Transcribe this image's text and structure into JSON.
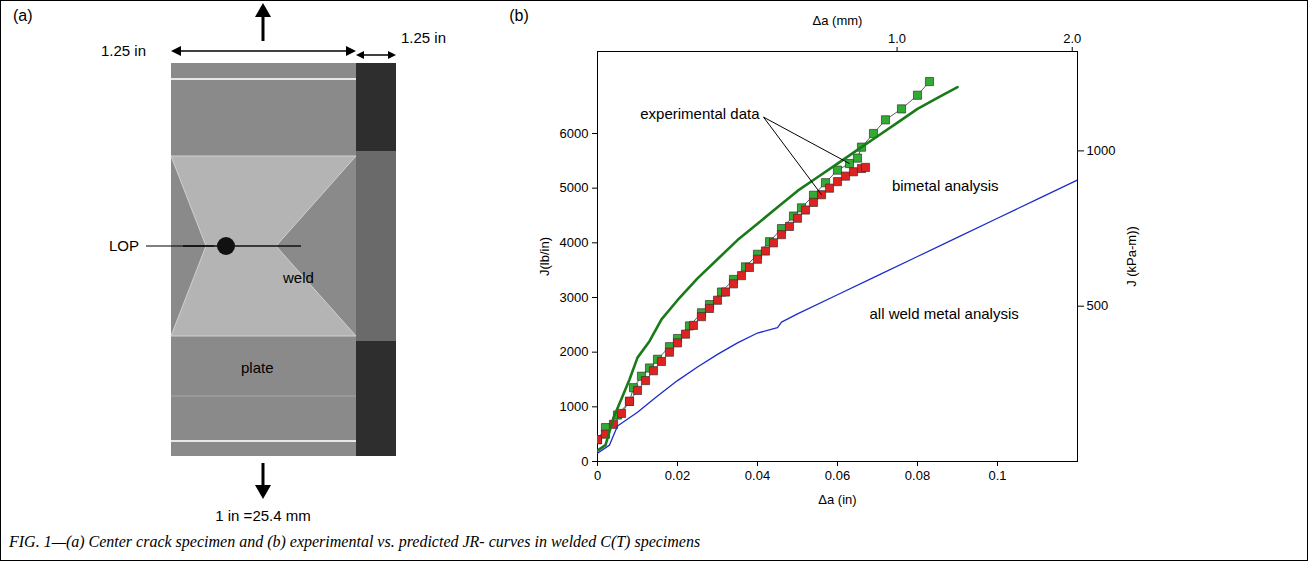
{
  "caption": "FIG. 1—(a) Center crack specimen and (b) experimental vs. predicted JR- curves in welded C(T) specimens",
  "panel_a": {
    "panel_label": "(a)",
    "width_label": "1.25 in",
    "thickness_label": "1.25 in",
    "labels": {
      "lop": "LOP",
      "weld": "weld",
      "plate": "plate"
    },
    "scale_note": "1 in =25.4 mm"
  },
  "chart_data": {
    "type": "line",
    "panel_label": "(b)",
    "xlabel": "Δa (in)",
    "ylabel": "J(lb/in)",
    "x2label": "Δa (mm)",
    "y2label": "J (kPa-m))",
    "xlim": [
      0,
      0.12
    ],
    "xticks": [
      0,
      0.02,
      0.04,
      0.06,
      0.08,
      0.1
    ],
    "ylim": [
      0,
      7500
    ],
    "yticks": [
      0,
      1000,
      2000,
      3000,
      4000,
      5000,
      6000
    ],
    "x2lim": [
      -0.71,
      2.03
    ],
    "x2ticks": [
      {
        "value": 1,
        "label": "1.0"
      },
      {
        "value": 2,
        "label": "2.0"
      }
    ],
    "y2lim": [
      0,
      1320
    ],
    "y2ticks": [
      500,
      1000
    ],
    "grid": false,
    "series": [
      {
        "color": "#33aa33",
        "marker": "square",
        "line_style": "solid",
        "x": [
          0,
          0.002,
          0.005,
          0.008,
          0.009,
          0.011,
          0.013,
          0.015,
          0.018,
          0.02,
          0.023,
          0.026,
          0.028,
          0.031,
          0.034,
          0.037,
          0.04,
          0.043,
          0.046,
          0.049,
          0.051,
          0.054,
          0.057,
          0.06,
          0.063,
          0.065,
          0.066,
          0.069,
          0.072,
          0.076,
          0.08,
          0.083
        ],
        "values": [
          400,
          620,
          850,
          1100,
          1350,
          1560,
          1710,
          1870,
          2100,
          2250,
          2480,
          2720,
          2870,
          3100,
          3330,
          3560,
          3790,
          4020,
          4260,
          4490,
          4640,
          4870,
          5100,
          5330,
          5450,
          5550,
          5750,
          6000,
          6250,
          6450,
          6700,
          6950
        ]
      },
      {
        "color": "#dd2222",
        "marker": "square",
        "line_style": "solid",
        "x": [
          0,
          0.002,
          0.004,
          0.006,
          0.008,
          0.01,
          0.012,
          0.014,
          0.016,
          0.018,
          0.02,
          0.022,
          0.024,
          0.026,
          0.028,
          0.03,
          0.032,
          0.034,
          0.036,
          0.038,
          0.04,
          0.042,
          0.044,
          0.046,
          0.048,
          0.05,
          0.052,
          0.054,
          0.056,
          0.058,
          0.06,
          0.062,
          0.064,
          0.066,
          0.067
        ],
        "values": [
          400,
          500,
          680,
          880,
          1100,
          1300,
          1480,
          1660,
          1830,
          2000,
          2170,
          2330,
          2490,
          2650,
          2800,
          2950,
          3100,
          3250,
          3400,
          3550,
          3700,
          3850,
          4000,
          4150,
          4300,
          4450,
          4600,
          4740,
          4880,
          5000,
          5120,
          5220,
          5300,
          5360,
          5380
        ]
      },
      {
        "name": "bimetal analysis",
        "color": "#1a7a1a",
        "line_style": "solid",
        "x": [
          0,
          0.002,
          0.004,
          0.006,
          0.008,
          0.01,
          0.013,
          0.016,
          0.02,
          0.025,
          0.03,
          0.035,
          0.04,
          0.045,
          0.05,
          0.055,
          0.06,
          0.065,
          0.07,
          0.075,
          0.08,
          0.085,
          0.09
        ],
        "values": [
          200,
          300,
          800,
          1150,
          1500,
          1900,
          2200,
          2600,
          2950,
          3350,
          3700,
          4050,
          4350,
          4650,
          4950,
          5200,
          5450,
          5700,
          5950,
          6200,
          6450,
          6650,
          6850
        ]
      },
      {
        "name": "all weld metal analysis",
        "color": "#1a2ccc",
        "line_style": "solid",
        "x": [
          0,
          0.003,
          0.005,
          0.01,
          0.015,
          0.02,
          0.025,
          0.03,
          0.035,
          0.04,
          0.045,
          0.046,
          0.05,
          0.06,
          0.07,
          0.08,
          0.09,
          0.1,
          0.11,
          0.12
        ],
        "values": [
          150,
          300,
          650,
          900,
          1200,
          1480,
          1730,
          1960,
          2170,
          2350,
          2450,
          2550,
          2700,
          3050,
          3400,
          3750,
          4100,
          4450,
          4800,
          5150
        ]
      }
    ],
    "annotations": [
      {
        "text": "experimental data"
      }
    ]
  }
}
